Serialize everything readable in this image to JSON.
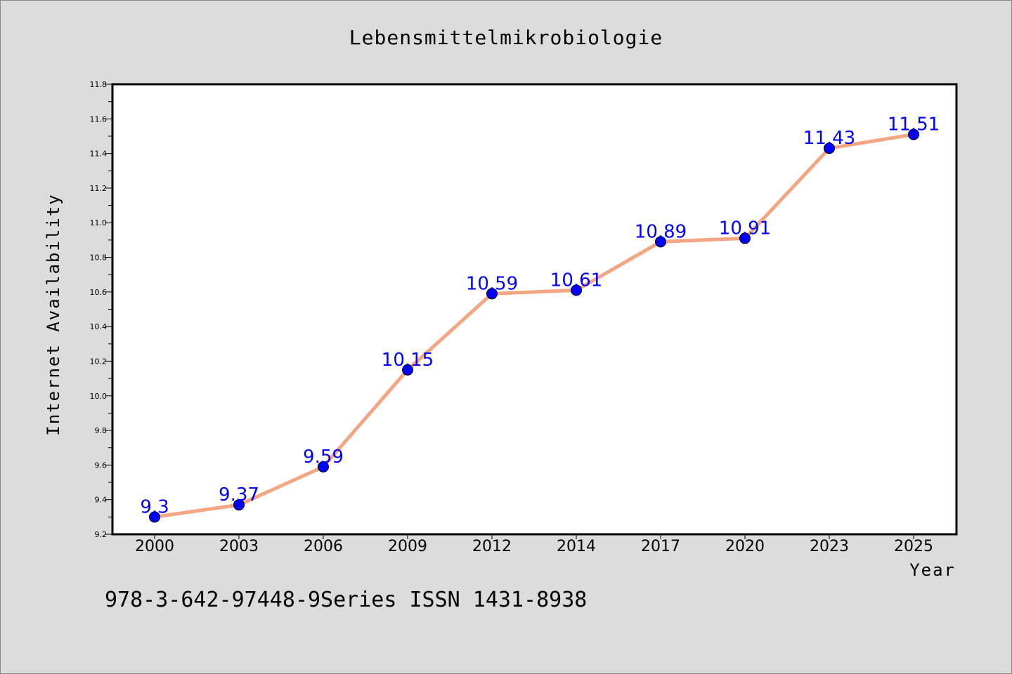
{
  "chart_data": {
    "type": "line",
    "title": "Lebensmittelmikrobiologie",
    "xlabel": "Year",
    "ylabel": "Internet Availability",
    "categories": [
      "2000",
      "2003",
      "2006",
      "2009",
      "2012",
      "2014",
      "2017",
      "2020",
      "2023",
      "2025"
    ],
    "series": [
      {
        "values": [
          9.3,
          9.37,
          9.59,
          10.15,
          10.59,
          10.61,
          10.89,
          10.91,
          11.43,
          11.51
        ],
        "data_labels": [
          "9.3",
          "9.37",
          "9.59",
          "10.15",
          "10.59",
          "10.61",
          "10.89",
          "10.91",
          "11.43",
          "11.51"
        ],
        "line_color": "#f4a582",
        "marker_color": "#0000ff",
        "label_color": "#0000ff"
      }
    ],
    "ylim": [
      9.2,
      11.8
    ],
    "yticks": [
      "9.2",
      "9.4",
      "9.6",
      "9.8",
      "10.0",
      "10.2",
      "10.4",
      "10.6",
      "10.8",
      "11.0",
      "11.2",
      "11.4",
      "11.6",
      "11.8"
    ],
    "grid": false,
    "legend": "none"
  },
  "footer": {
    "text": "978-3-642-97448-9Series ISSN 1431-8938"
  },
  "colors": {
    "background": "#dcdcdc",
    "plot_background": "#ffffff"
  }
}
